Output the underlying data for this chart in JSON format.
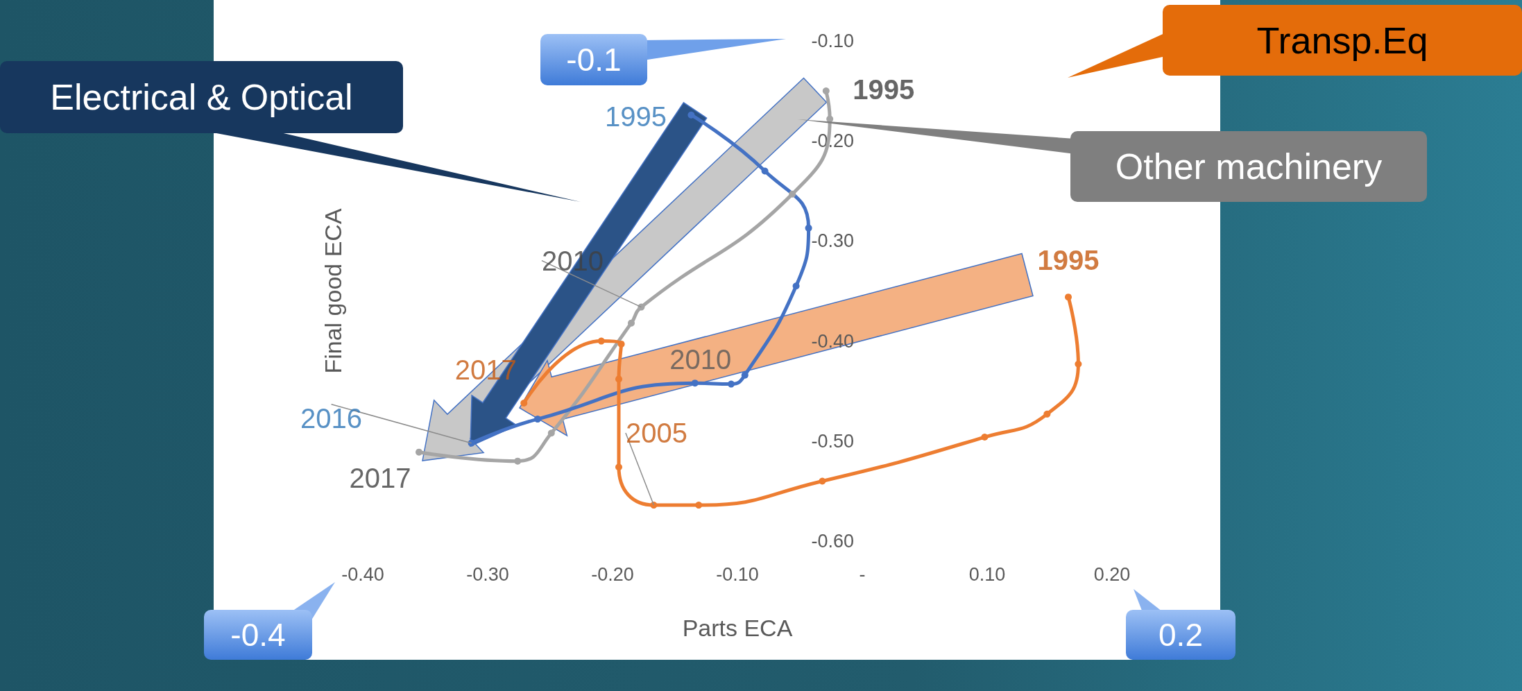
{
  "chart_data": {
    "type": "line",
    "xlabel": "Parts ECA",
    "ylabel": "Final good ECA",
    "xlim": [
      -0.4,
      0.2
    ],
    "ylim": [
      -0.6,
      -0.1
    ],
    "xticks": [
      {
        "value": -0.4,
        "label": "-0.40"
      },
      {
        "value": -0.3,
        "label": "-0.30"
      },
      {
        "value": -0.2,
        "label": "-0.20"
      },
      {
        "value": -0.1,
        "label": "-0.10"
      },
      {
        "value": 0,
        "label": "-"
      },
      {
        "value": 0.1,
        "label": "0.10"
      },
      {
        "value": 0.2,
        "label": "0.20"
      }
    ],
    "yticks": [
      {
        "value": -0.1,
        "label": "-0.10"
      },
      {
        "value": -0.2,
        "label": "-0.20"
      },
      {
        "value": -0.3,
        "label": "-0.30"
      },
      {
        "value": -0.4,
        "label": "-0.40"
      },
      {
        "value": -0.5,
        "label": "-0.50"
      },
      {
        "value": -0.6,
        "label": "-0.60"
      }
    ],
    "marker": "circle",
    "line_style": "solid",
    "series": [
      {
        "color": "#a5a5a5",
        "x": [
          -0.029,
          -0.026,
          -0.056,
          -0.177,
          -0.185,
          -0.249,
          -0.276,
          -0.355
        ],
        "values": [
          -0.15,
          -0.178,
          -0.253,
          -0.366,
          -0.382,
          -0.492,
          -0.52,
          -0.511
        ]
      },
      {
        "color": "#4472c4",
        "x": [
          -0.137,
          -0.078,
          -0.043,
          -0.053,
          -0.094,
          -0.105,
          -0.134,
          -0.26,
          -0.313
        ],
        "values": [
          -0.174,
          -0.23,
          -0.287,
          -0.345,
          -0.434,
          -0.443,
          -0.442,
          -0.478,
          -0.502
        ]
      },
      {
        "color": "#ed7d31",
        "x": [
          0.165,
          0.173,
          0.148,
          0.098,
          -0.032,
          -0.131,
          -0.167,
          -0.195,
          -0.195,
          -0.193,
          -0.209,
          -0.271
        ],
        "values": [
          -0.356,
          -0.423,
          -0.473,
          -0.496,
          -0.54,
          -0.564,
          -0.564,
          -0.526,
          -0.438,
          -0.403,
          -0.4,
          -0.462
        ]
      }
    ],
    "annotations": [
      {
        "text": "1995",
        "x": -0.029,
        "y": -0.15
      },
      {
        "text": "2010",
        "x": -0.134,
        "y": -0.442
      },
      {
        "text": "2010",
        "x": -0.177,
        "y": -0.366
      },
      {
        "text": "2017",
        "x": -0.355,
        "y": -0.511
      },
      {
        "text": "1995",
        "x": -0.137,
        "y": -0.174
      },
      {
        "text": "2016",
        "x": -0.313,
        "y": -0.502
      },
      {
        "text": "2005",
        "x": -0.167,
        "y": -0.564
      },
      {
        "text": "2017",
        "x": -0.271,
        "y": -0.462
      },
      {
        "text": "1995",
        "x": 0.165,
        "y": -0.356
      },
      "-0.1",
      "-0.4",
      "0.2",
      "Transp.Eq",
      "Electrical & Optical",
      "Other machinery"
    ]
  }
}
